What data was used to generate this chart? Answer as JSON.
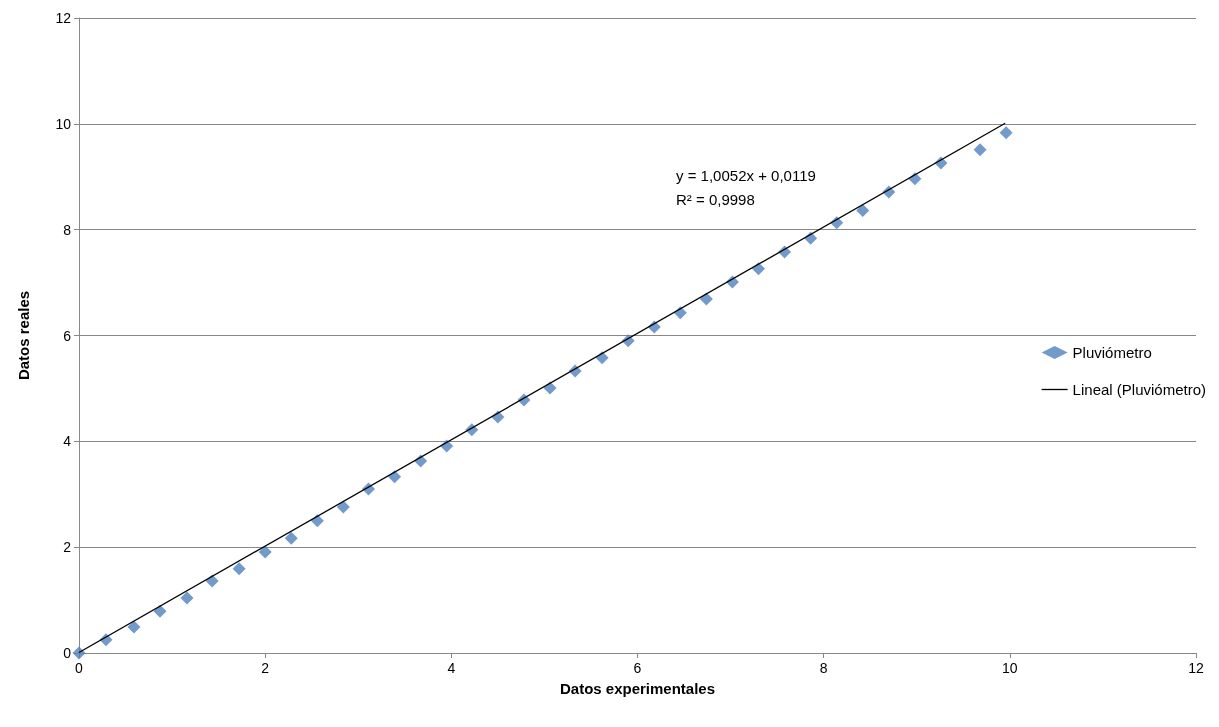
{
  "chart_data": {
    "type": "scatter",
    "xlabel": "Datos experimentales",
    "ylabel": "Datos reales",
    "xlim": [
      0,
      12
    ],
    "xticks": [
      0,
      2,
      4,
      6,
      8,
      10,
      12
    ],
    "ylim": [
      0,
      12
    ],
    "yticks": [
      0,
      2,
      4,
      6,
      8,
      10,
      12
    ],
    "grid": "y",
    "legend": "right",
    "marker": "diamond",
    "annotations": [
      "y = 1,0052x + 0,0119",
      "R² = 0,9998"
    ],
    "series": [
      {
        "name": "Pluviómetro",
        "color": "#4f81bd",
        "x": [
          0,
          0.29,
          0.59,
          0.87,
          1.16,
          1.43,
          1.72,
          2.0,
          2.28,
          2.56,
          2.84,
          3.11,
          3.39,
          3.67,
          3.95,
          4.22,
          4.5,
          4.78,
          5.06,
          5.33,
          5.62,
          5.9,
          6.18,
          6.46,
          6.74,
          7.02,
          7.3,
          7.58,
          7.86,
          8.14,
          8.42,
          8.7,
          8.98,
          9.26,
          9.68,
          9.96
        ],
        "values": [
          0,
          0.25,
          0.49,
          0.79,
          1.04,
          1.36,
          1.59,
          1.91,
          2.17,
          2.5,
          2.76,
          3.1,
          3.33,
          3.63,
          3.91,
          4.22,
          4.46,
          4.78,
          5.01,
          5.33,
          5.58,
          5.9,
          6.16,
          6.43,
          6.69,
          7.01,
          7.26,
          7.58,
          7.84,
          8.13,
          8.36,
          8.71,
          8.96,
          9.26,
          9.51,
          9.83
        ]
      },
      {
        "name": "Lineal (Pluviómetro)",
        "type": "line",
        "color": "#000000",
        "marker": "none",
        "x": [
          0,
          9.95
        ],
        "values": [
          0.01,
          10.01
        ]
      }
    ]
  }
}
